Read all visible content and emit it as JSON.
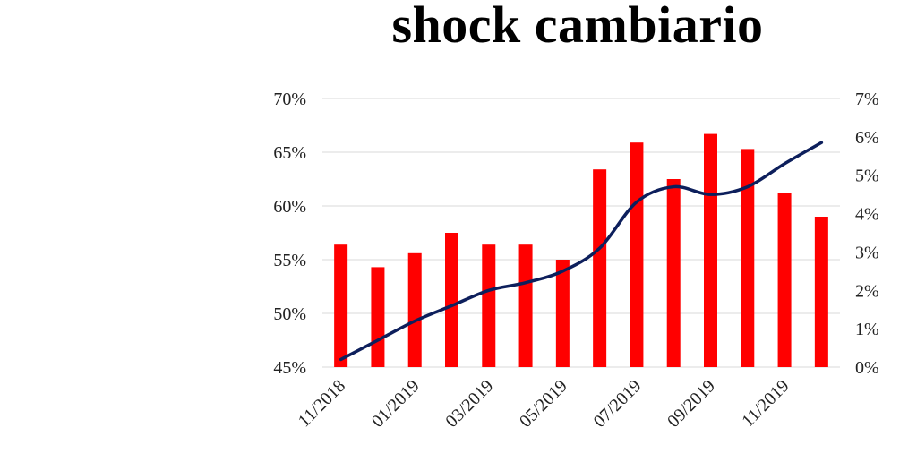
{
  "chart_data": {
    "type": "bar",
    "title": "shock cambiario",
    "categories": [
      "11/2018",
      "12/2018",
      "01/2019",
      "02/2019",
      "03/2019",
      "04/2019",
      "05/2019",
      "06/2019",
      "07/2019",
      "08/2019",
      "09/2019",
      "10/2019",
      "11/2019",
      "12/2019"
    ],
    "x_tick_labels": [
      "11/2018",
      "01/2019",
      "03/2019",
      "05/2019",
      "07/2019",
      "09/2019",
      "11/2019"
    ],
    "series": [
      {
        "type": "bar",
        "axis": "left",
        "color": "#ff0000",
        "values": [
          56.4,
          54.3,
          55.6,
          57.5,
          56.4,
          56.4,
          55.0,
          63.4,
          65.9,
          62.5,
          66.7,
          65.3,
          61.2,
          59.0
        ]
      },
      {
        "type": "line",
        "axis": "right",
        "color": "#0d1f5c",
        "smooth": true,
        "values": [
          0.2,
          0.7,
          1.2,
          1.6,
          2.0,
          2.2,
          2.5,
          3.1,
          4.3,
          4.7,
          4.5,
          4.7,
          5.3,
          5.85
        ]
      }
    ],
    "y_left": {
      "ylim": [
        45,
        70
      ],
      "ticks": [
        45,
        50,
        55,
        60,
        65,
        70
      ],
      "tick_labels": [
        "45%",
        "50%",
        "55%",
        "60%",
        "65%",
        "70%"
      ]
    },
    "y_right": {
      "ylim": [
        0,
        7
      ],
      "ticks": [
        0,
        1,
        2,
        3,
        4,
        5,
        6,
        7
      ],
      "tick_labels": [
        "0%",
        "1%",
        "2%",
        "3%",
        "4%",
        "5%",
        "6%",
        "7%"
      ]
    },
    "grid": true,
    "legend": "none",
    "xlabel": "",
    "ylabel": ""
  }
}
